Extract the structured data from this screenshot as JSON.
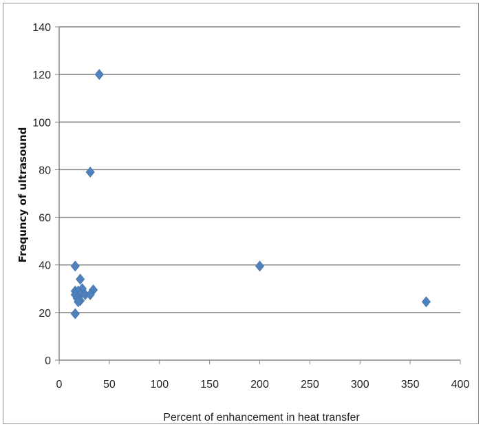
{
  "chart_data": {
    "type": "scatter",
    "title": "",
    "xlabel": "Percent of enhancement in heat transfer",
    "ylabel": "Frequncy of ultrasound",
    "xlim": [
      0,
      400
    ],
    "ylim": [
      0,
      140
    ],
    "x_ticks": [
      "0",
      "50",
      "100",
      "150",
      "200",
      "250",
      "300",
      "350",
      "400"
    ],
    "y_ticks": [
      "0",
      "20",
      "40",
      "60",
      "80",
      "100",
      "120",
      "140"
    ],
    "grid": "horizontal",
    "legend": "none",
    "marker": "diamond",
    "colors": {
      "marker": "#4f81bd",
      "grid": "#868686",
      "axis": "#868686"
    },
    "series": [
      {
        "points": [
          {
            "x": 40,
            "y": 120
          },
          {
            "x": 31,
            "y": 79
          },
          {
            "x": 16,
            "y": 39.5
          },
          {
            "x": 200,
            "y": 39.5
          },
          {
            "x": 21,
            "y": 34
          },
          {
            "x": 23,
            "y": 30
          },
          {
            "x": 16,
            "y": 29
          },
          {
            "x": 19,
            "y": 29
          },
          {
            "x": 34,
            "y": 29.5
          },
          {
            "x": 16,
            "y": 27.5
          },
          {
            "x": 21,
            "y": 27.5
          },
          {
            "x": 26,
            "y": 27.5
          },
          {
            "x": 31,
            "y": 27.5
          },
          {
            "x": 18,
            "y": 26
          },
          {
            "x": 21,
            "y": 25
          },
          {
            "x": 19,
            "y": 24.5
          },
          {
            "x": 366,
            "y": 24.5
          },
          {
            "x": 16,
            "y": 19.5
          }
        ]
      }
    ]
  }
}
